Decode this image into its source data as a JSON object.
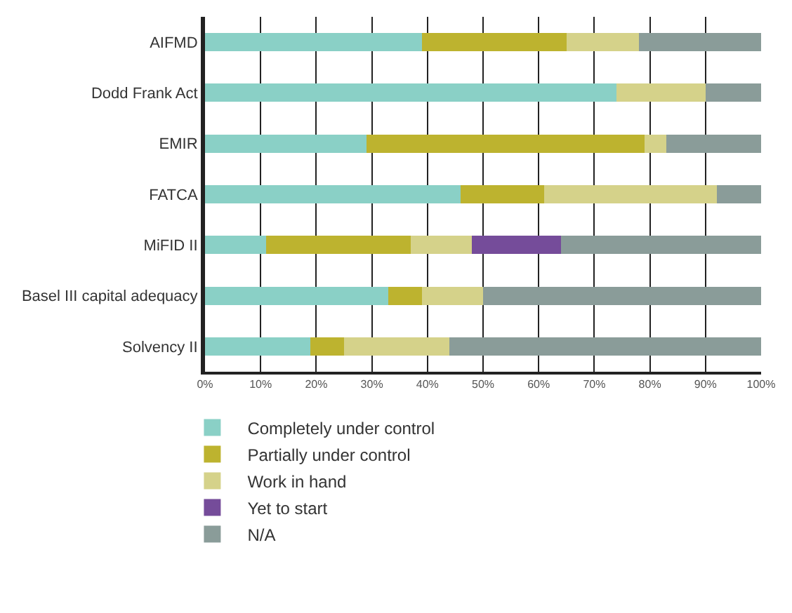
{
  "chart_data": {
    "type": "bar",
    "orientation": "horizontal",
    "stacked": true,
    "categories": [
      "AIFMD",
      "Dodd Frank Act",
      "EMIR",
      "FATCA",
      "MiFID II",
      "Basel III capital adequacy",
      "Solvency II"
    ],
    "series": [
      {
        "name": "Completely under control",
        "color": "#8ad0c6",
        "values": [
          39,
          74,
          29,
          46,
          11,
          33,
          19
        ]
      },
      {
        "name": "Partially under control",
        "color": "#bdb32f",
        "values": [
          26,
          0,
          50,
          15,
          26,
          6,
          6
        ]
      },
      {
        "name": "Work in hand",
        "color": "#d5d28a",
        "values": [
          13,
          16,
          4,
          31,
          11,
          11,
          19
        ]
      },
      {
        "name": "Yet to start",
        "color": "#754c9a",
        "values": [
          0,
          0,
          0,
          0,
          16,
          0,
          0
        ]
      },
      {
        "name": "N/A",
        "color": "#8a9c99",
        "values": [
          22,
          10,
          17,
          8,
          36,
          50,
          56
        ]
      }
    ],
    "xlim": [
      0,
      100
    ],
    "xticks": [
      {
        "value": 0,
        "label": "0%"
      },
      {
        "value": 10,
        "label": "10%"
      },
      {
        "value": 20,
        "label": "20%"
      },
      {
        "value": 30,
        "label": "30%"
      },
      {
        "value": 40,
        "label": "40%"
      },
      {
        "value": 50,
        "label": "50%"
      },
      {
        "value": 60,
        "label": "60%"
      },
      {
        "value": 70,
        "label": "70%"
      },
      {
        "value": 80,
        "label": "80%"
      },
      {
        "value": 90,
        "label": "90%"
      },
      {
        "value": 100,
        "label": "100%"
      }
    ],
    "grid": "x",
    "legend": "bottom"
  }
}
